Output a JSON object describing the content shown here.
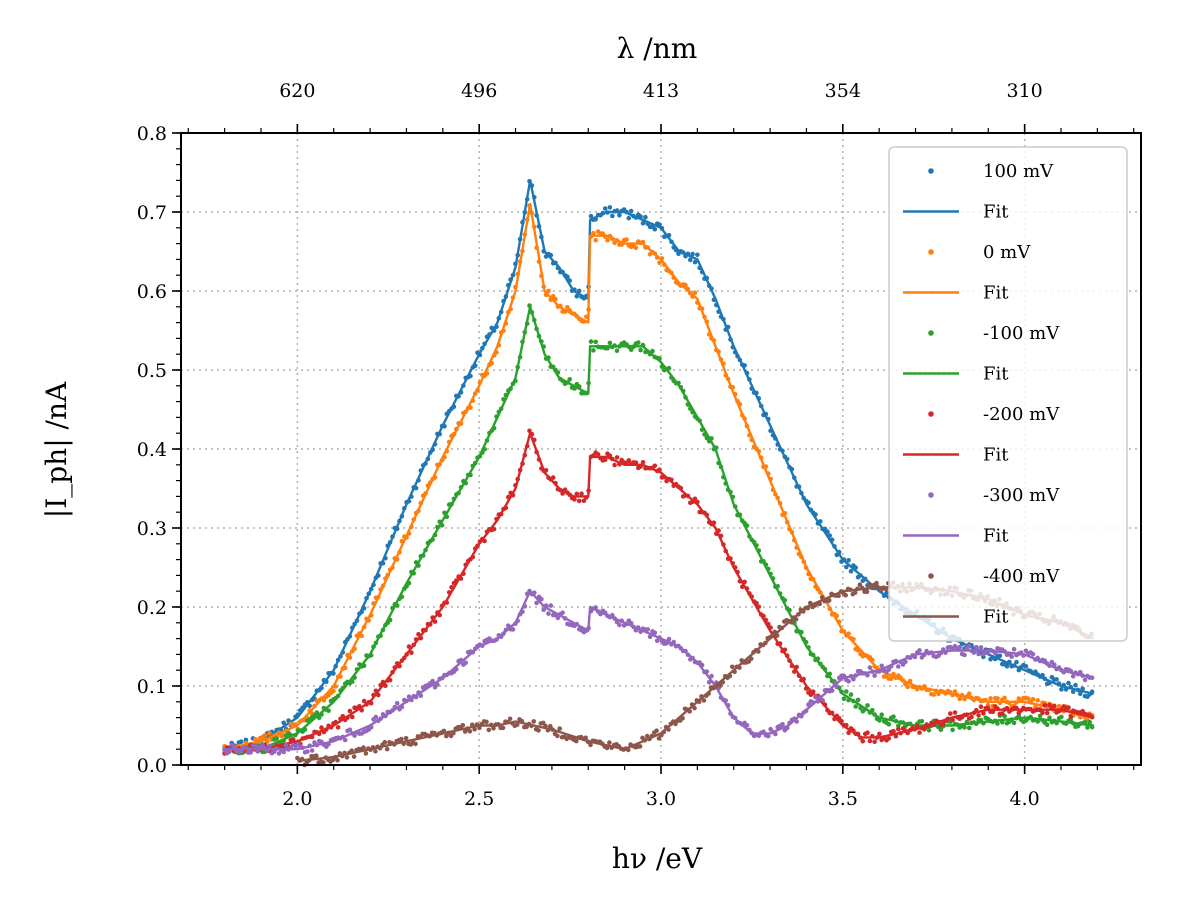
{
  "chart_data": {
    "type": "scatter",
    "xlabel": "hν /eV",
    "ylabel": "|I_ph| /nA",
    "top_xlabel": "λ /nm",
    "xlim": [
      1.68,
      4.32
    ],
    "ylim": [
      0.0,
      0.8
    ],
    "x_ticks": [
      "2.0",
      "2.5",
      "3.0",
      "3.5",
      "4.0"
    ],
    "y_ticks": [
      "0.0",
      "0.1",
      "0.2",
      "0.3",
      "0.4",
      "0.5",
      "0.6",
      "0.7",
      "0.8"
    ],
    "top_ticks": [
      {
        "energy": 2.0,
        "label": "620"
      },
      {
        "energy": 2.5,
        "label": "496"
      },
      {
        "energy": 3.0,
        "label": "413"
      },
      {
        "energy": 3.5,
        "label": "354"
      },
      {
        "energy": 4.0,
        "label": "310"
      }
    ],
    "grid": true,
    "legend_position": "top-right",
    "legend": [
      "100 mV",
      "Fit",
      "0 mV",
      "Fit",
      "-100 mV",
      "Fit",
      "-200 mV",
      "Fit",
      "-300 mV",
      "Fit",
      "-400 mV",
      "Fit"
    ],
    "series": [
      {
        "name": "100 mV",
        "color": "#1f77b4",
        "x": [
          1.8,
          1.9,
          2.0,
          2.1,
          2.2,
          2.3,
          2.4,
          2.5,
          2.55,
          2.6,
          2.64,
          2.68,
          2.72,
          2.76,
          2.8,
          2.805,
          2.85,
          2.9,
          2.95,
          3.0,
          3.05,
          3.1,
          3.15,
          3.2,
          3.3,
          3.4,
          3.5,
          3.6,
          3.7,
          3.8,
          3.9,
          4.0,
          4.1,
          4.19
        ],
        "y": [
          0.02,
          0.03,
          0.06,
          0.12,
          0.22,
          0.33,
          0.43,
          0.52,
          0.56,
          0.63,
          0.74,
          0.65,
          0.63,
          0.6,
          0.59,
          0.69,
          0.7,
          0.7,
          0.69,
          0.68,
          0.65,
          0.64,
          0.59,
          0.53,
          0.43,
          0.33,
          0.26,
          0.22,
          0.19,
          0.16,
          0.14,
          0.12,
          0.1,
          0.09
        ]
      },
      {
        "name": "0 mV",
        "color": "#ff7f0e",
        "x": [
          1.8,
          1.9,
          2.0,
          2.1,
          2.2,
          2.3,
          2.4,
          2.5,
          2.55,
          2.6,
          2.64,
          2.68,
          2.72,
          2.76,
          2.8,
          2.805,
          2.85,
          2.9,
          2.95,
          3.0,
          3.05,
          3.1,
          3.15,
          3.2,
          3.3,
          3.4,
          3.5,
          3.6,
          3.7,
          3.8,
          3.9,
          4.0,
          4.1,
          4.19
        ],
        "y": [
          0.02,
          0.03,
          0.05,
          0.1,
          0.19,
          0.29,
          0.39,
          0.48,
          0.53,
          0.6,
          0.71,
          0.6,
          0.58,
          0.57,
          0.56,
          0.67,
          0.67,
          0.66,
          0.66,
          0.64,
          0.61,
          0.59,
          0.53,
          0.47,
          0.36,
          0.25,
          0.17,
          0.12,
          0.1,
          0.09,
          0.08,
          0.08,
          0.07,
          0.06
        ]
      },
      {
        "name": "-100 mV",
        "color": "#2ca02c",
        "x": [
          1.8,
          1.9,
          2.0,
          2.1,
          2.2,
          2.3,
          2.4,
          2.5,
          2.55,
          2.6,
          2.64,
          2.68,
          2.72,
          2.76,
          2.8,
          2.805,
          2.85,
          2.9,
          2.95,
          3.0,
          3.05,
          3.1,
          3.15,
          3.2,
          3.3,
          3.4,
          3.5,
          3.6,
          3.7,
          3.8,
          3.9,
          4.0,
          4.1,
          4.19
        ],
        "y": [
          0.02,
          0.02,
          0.04,
          0.08,
          0.14,
          0.23,
          0.31,
          0.39,
          0.44,
          0.49,
          0.58,
          0.52,
          0.49,
          0.48,
          0.47,
          0.53,
          0.53,
          0.53,
          0.53,
          0.51,
          0.48,
          0.44,
          0.4,
          0.33,
          0.24,
          0.15,
          0.09,
          0.06,
          0.05,
          0.05,
          0.055,
          0.06,
          0.055,
          0.05
        ]
      },
      {
        "name": "-200 mV",
        "color": "#d62728",
        "x": [
          1.8,
          1.9,
          2.0,
          2.1,
          2.2,
          2.3,
          2.4,
          2.5,
          2.55,
          2.6,
          2.64,
          2.68,
          2.72,
          2.76,
          2.8,
          2.805,
          2.85,
          2.9,
          2.95,
          3.0,
          3.05,
          3.1,
          3.15,
          3.2,
          3.3,
          3.4,
          3.5,
          3.55,
          3.6,
          3.7,
          3.8,
          3.9,
          4.0,
          4.1,
          4.19
        ],
        "y": [
          0.02,
          0.02,
          0.03,
          0.05,
          0.08,
          0.14,
          0.2,
          0.28,
          0.31,
          0.35,
          0.42,
          0.37,
          0.35,
          0.34,
          0.34,
          0.39,
          0.39,
          0.38,
          0.38,
          0.37,
          0.35,
          0.33,
          0.3,
          0.25,
          0.17,
          0.1,
          0.05,
          0.035,
          0.035,
          0.045,
          0.06,
          0.07,
          0.07,
          0.07,
          0.06
        ]
      },
      {
        "name": "-300 mV",
        "color": "#9467bd",
        "x": [
          1.8,
          1.9,
          2.0,
          2.1,
          2.2,
          2.3,
          2.4,
          2.5,
          2.55,
          2.6,
          2.64,
          2.68,
          2.72,
          2.76,
          2.8,
          2.805,
          2.85,
          2.9,
          2.95,
          3.0,
          3.05,
          3.1,
          3.15,
          3.2,
          3.25,
          3.3,
          3.35,
          3.4,
          3.5,
          3.6,
          3.7,
          3.8,
          3.9,
          4.0,
          4.1,
          4.19
        ],
        "y": [
          0.02,
          0.02,
          0.02,
          0.03,
          0.05,
          0.08,
          0.11,
          0.15,
          0.16,
          0.18,
          0.22,
          0.2,
          0.19,
          0.18,
          0.17,
          0.2,
          0.19,
          0.18,
          0.17,
          0.16,
          0.15,
          0.13,
          0.1,
          0.06,
          0.04,
          0.04,
          0.05,
          0.07,
          0.11,
          0.12,
          0.14,
          0.145,
          0.145,
          0.14,
          0.12,
          0.11
        ]
      },
      {
        "name": "-400 mV",
        "color": "#8c564b",
        "x": [
          2.0,
          2.1,
          2.2,
          2.3,
          2.4,
          2.5,
          2.55,
          2.6,
          2.7,
          2.8,
          2.9,
          3.0,
          3.1,
          3.2,
          3.3,
          3.4,
          3.5,
          3.6,
          3.7,
          3.8,
          3.9,
          4.0,
          4.1,
          4.19
        ],
        "y": [
          0.005,
          0.01,
          0.02,
          0.03,
          0.04,
          0.05,
          0.05,
          0.055,
          0.045,
          0.03,
          0.02,
          0.04,
          0.08,
          0.12,
          0.16,
          0.2,
          0.22,
          0.225,
          0.225,
          0.22,
          0.21,
          0.19,
          0.18,
          0.16
        ]
      }
    ]
  }
}
